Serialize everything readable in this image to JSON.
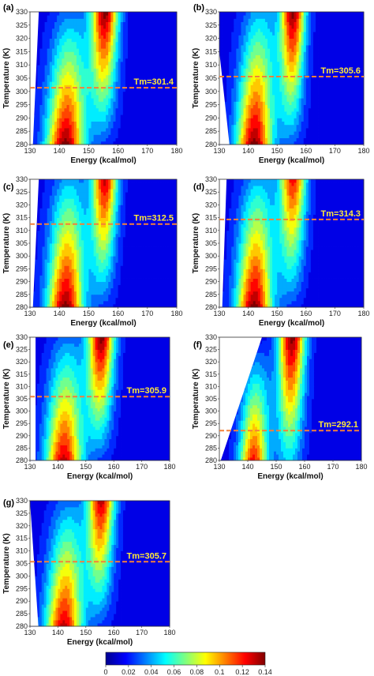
{
  "chart_data": [
    {
      "panel": "(a)",
      "type": "heatmap",
      "xlabel": "Energy (kcal/mol)",
      "ylabel": "Temperature (K)",
      "xlim": [
        130,
        180
      ],
      "ylim": [
        280,
        330
      ],
      "x_ticks": [
        "130",
        "140",
        "150",
        "160",
        "170",
        "180"
      ],
      "y_ticks": [
        "280",
        "285",
        "290",
        "295",
        "300",
        "305",
        "310",
        "315",
        "320",
        "325",
        "330"
      ],
      "tm_value": 301.4,
      "tm_label": "Tm=301.4",
      "left_boundary": [
        [
          131,
          280
        ],
        [
          133,
          330
        ]
      ],
      "peaks": [
        {
          "center_at_280": 142,
          "center_at_330": 144,
          "width": 4.5,
          "intensity_at_280": 0.14,
          "intensity_at_330": 0.02
        },
        {
          "center_at_280": 154.5,
          "center_at_330": 155.5,
          "width": 3.2,
          "intensity_at_280": 0.01,
          "intensity_at_330": 0.14
        }
      ]
    },
    {
      "panel": "(b)",
      "type": "heatmap",
      "xlabel": "Energy (kcal/mol)",
      "ylabel": "Temperature (K)",
      "xlim": [
        130,
        180
      ],
      "ylim": [
        280,
        330
      ],
      "x_ticks": [
        "130",
        "140",
        "150",
        "160",
        "170",
        "180"
      ],
      "y_ticks": [
        "280",
        "285",
        "290",
        "295",
        "300",
        "305",
        "310",
        "315",
        "320",
        "325",
        "330"
      ],
      "tm_value": 305.6,
      "tm_label": "Tm=305.6",
      "left_boundary": [
        [
          133.5,
          280
        ],
        [
          128.5,
          330
        ]
      ],
      "peaks": [
        {
          "center_at_280": 142,
          "center_at_330": 144,
          "width": 4.3,
          "intensity_at_280": 0.14,
          "intensity_at_330": 0.03
        },
        {
          "center_at_280": 154.5,
          "center_at_330": 155.5,
          "width": 3.0,
          "intensity_at_280": 0.015,
          "intensity_at_330": 0.14
        }
      ]
    },
    {
      "panel": "(c)",
      "type": "heatmap",
      "xlabel": "Energy (kcal/mol)",
      "ylabel": "Temperature (K)",
      "xlim": [
        130,
        180
      ],
      "ylim": [
        280,
        330
      ],
      "x_ticks": [
        "130",
        "140",
        "150",
        "160",
        "170",
        "180"
      ],
      "y_ticks": [
        "280",
        "285",
        "290",
        "295",
        "300",
        "305",
        "310",
        "315",
        "320",
        "325",
        "330"
      ],
      "tm_value": 312.5,
      "tm_label": "Tm=312.5",
      "left_boundary": [
        [
          131,
          280
        ],
        [
          133,
          330
        ]
      ],
      "peaks": [
        {
          "center_at_280": 142,
          "center_at_330": 143.5,
          "width": 4.3,
          "intensity_at_280": 0.14,
          "intensity_at_330": 0.03
        },
        {
          "center_at_280": 154.5,
          "center_at_330": 155.5,
          "width": 3.0,
          "intensity_at_280": 0.01,
          "intensity_at_330": 0.13
        }
      ]
    },
    {
      "panel": "(d)",
      "type": "heatmap",
      "xlabel": "Energy (kcal/mol)",
      "ylabel": "Temperature (K)",
      "xlim": [
        130,
        180
      ],
      "ylim": [
        280,
        330
      ],
      "x_ticks": [
        "130",
        "140",
        "150",
        "160",
        "170",
        "180"
      ],
      "y_ticks": [
        "280",
        "285",
        "290",
        "295",
        "300",
        "305",
        "310",
        "315",
        "320",
        "325",
        "330"
      ],
      "tm_value": 314.3,
      "tm_label": "Tm=314.3",
      "left_boundary": [
        [
          131,
          280
        ],
        [
          132.5,
          330
        ]
      ],
      "peaks": [
        {
          "center_at_280": 142,
          "center_at_330": 143.5,
          "width": 4.3,
          "intensity_at_280": 0.14,
          "intensity_at_330": 0.03
        },
        {
          "center_at_280": 154.5,
          "center_at_330": 155.5,
          "width": 3.2,
          "intensity_at_280": 0.01,
          "intensity_at_330": 0.12
        }
      ]
    },
    {
      "panel": "(e)",
      "type": "heatmap",
      "xlabel": "Energy (kcal/mol)",
      "ylabel": "Temperature (K)",
      "xlim": [
        130,
        180
      ],
      "ylim": [
        280,
        330
      ],
      "x_ticks": [
        "130",
        "140",
        "150",
        "160",
        "170",
        "180"
      ],
      "y_ticks": [
        "280",
        "285",
        "290",
        "295",
        "300",
        "305",
        "310",
        "315",
        "320",
        "325",
        "330"
      ],
      "tm_value": 305.9,
      "tm_label": "Tm=305.9",
      "left_boundary": [
        [
          132,
          280
        ],
        [
          132,
          330
        ]
      ],
      "peaks": [
        {
          "center_at_280": 142,
          "center_at_330": 143.5,
          "width": 4.5,
          "intensity_at_280": 0.13,
          "intensity_at_330": 0.02
        },
        {
          "center_at_280": 154.5,
          "center_at_330": 155.5,
          "width": 3.3,
          "intensity_at_280": 0.01,
          "intensity_at_330": 0.14
        }
      ]
    },
    {
      "panel": "(f)",
      "type": "heatmap",
      "xlabel": "Energy (kcal/mol)",
      "ylabel": "Temperature (K)",
      "xlim": [
        130,
        180
      ],
      "ylim": [
        280,
        330
      ],
      "x_ticks": [
        "130",
        "140",
        "150",
        "160",
        "170",
        "180"
      ],
      "y_ticks": [
        "280",
        "285",
        "290",
        "295",
        "300",
        "305",
        "310",
        "315",
        "320",
        "325",
        "330"
      ],
      "tm_value": 292.1,
      "tm_label": "Tm=292.1",
      "left_boundary": [
        [
          130.5,
          280
        ],
        [
          145,
          330
        ]
      ],
      "peaks": [
        {
          "center_at_280": 142,
          "center_at_330": 143.5,
          "width": 3.5,
          "intensity_at_280": 0.12,
          "intensity_at_330": 0.0
        },
        {
          "center_at_280": 154.5,
          "center_at_330": 155.5,
          "width": 3.3,
          "intensity_at_280": 0.035,
          "intensity_at_330": 0.14
        }
      ]
    },
    {
      "panel": "(g)",
      "type": "heatmap",
      "xlabel": "Energy (kcal/mol)",
      "ylabel": "Temperature (K)",
      "xlim": [
        130,
        180
      ],
      "ylim": [
        280,
        330
      ],
      "x_ticks": [
        "130",
        "140",
        "150",
        "160",
        "170",
        "180"
      ],
      "y_ticks": [
        "280",
        "285",
        "290",
        "295",
        "300",
        "305",
        "310",
        "315",
        "320",
        "325",
        "330"
      ],
      "tm_value": 305.7,
      "tm_label": "Tm=305.7",
      "left_boundary": [
        [
          133,
          280
        ],
        [
          130,
          330
        ]
      ],
      "peaks": [
        {
          "center_at_280": 142,
          "center_at_330": 144,
          "width": 4.5,
          "intensity_at_280": 0.13,
          "intensity_at_330": 0.02
        },
        {
          "center_at_280": 154.5,
          "center_at_330": 155.5,
          "width": 3.3,
          "intensity_at_280": 0.01,
          "intensity_at_330": 0.13
        }
      ]
    }
  ],
  "colorbar": {
    "min": 0,
    "max": 0.14,
    "tick_labels": [
      "0",
      "0.02",
      "0.04",
      "0.06",
      "0.08",
      "0.1",
      "0.12",
      "0.14"
    ],
    "colormap": "jet"
  },
  "colors": {
    "tm_line": "#f4803a",
    "tm_text": "#ffe83a",
    "background_low": "#1432c8"
  }
}
